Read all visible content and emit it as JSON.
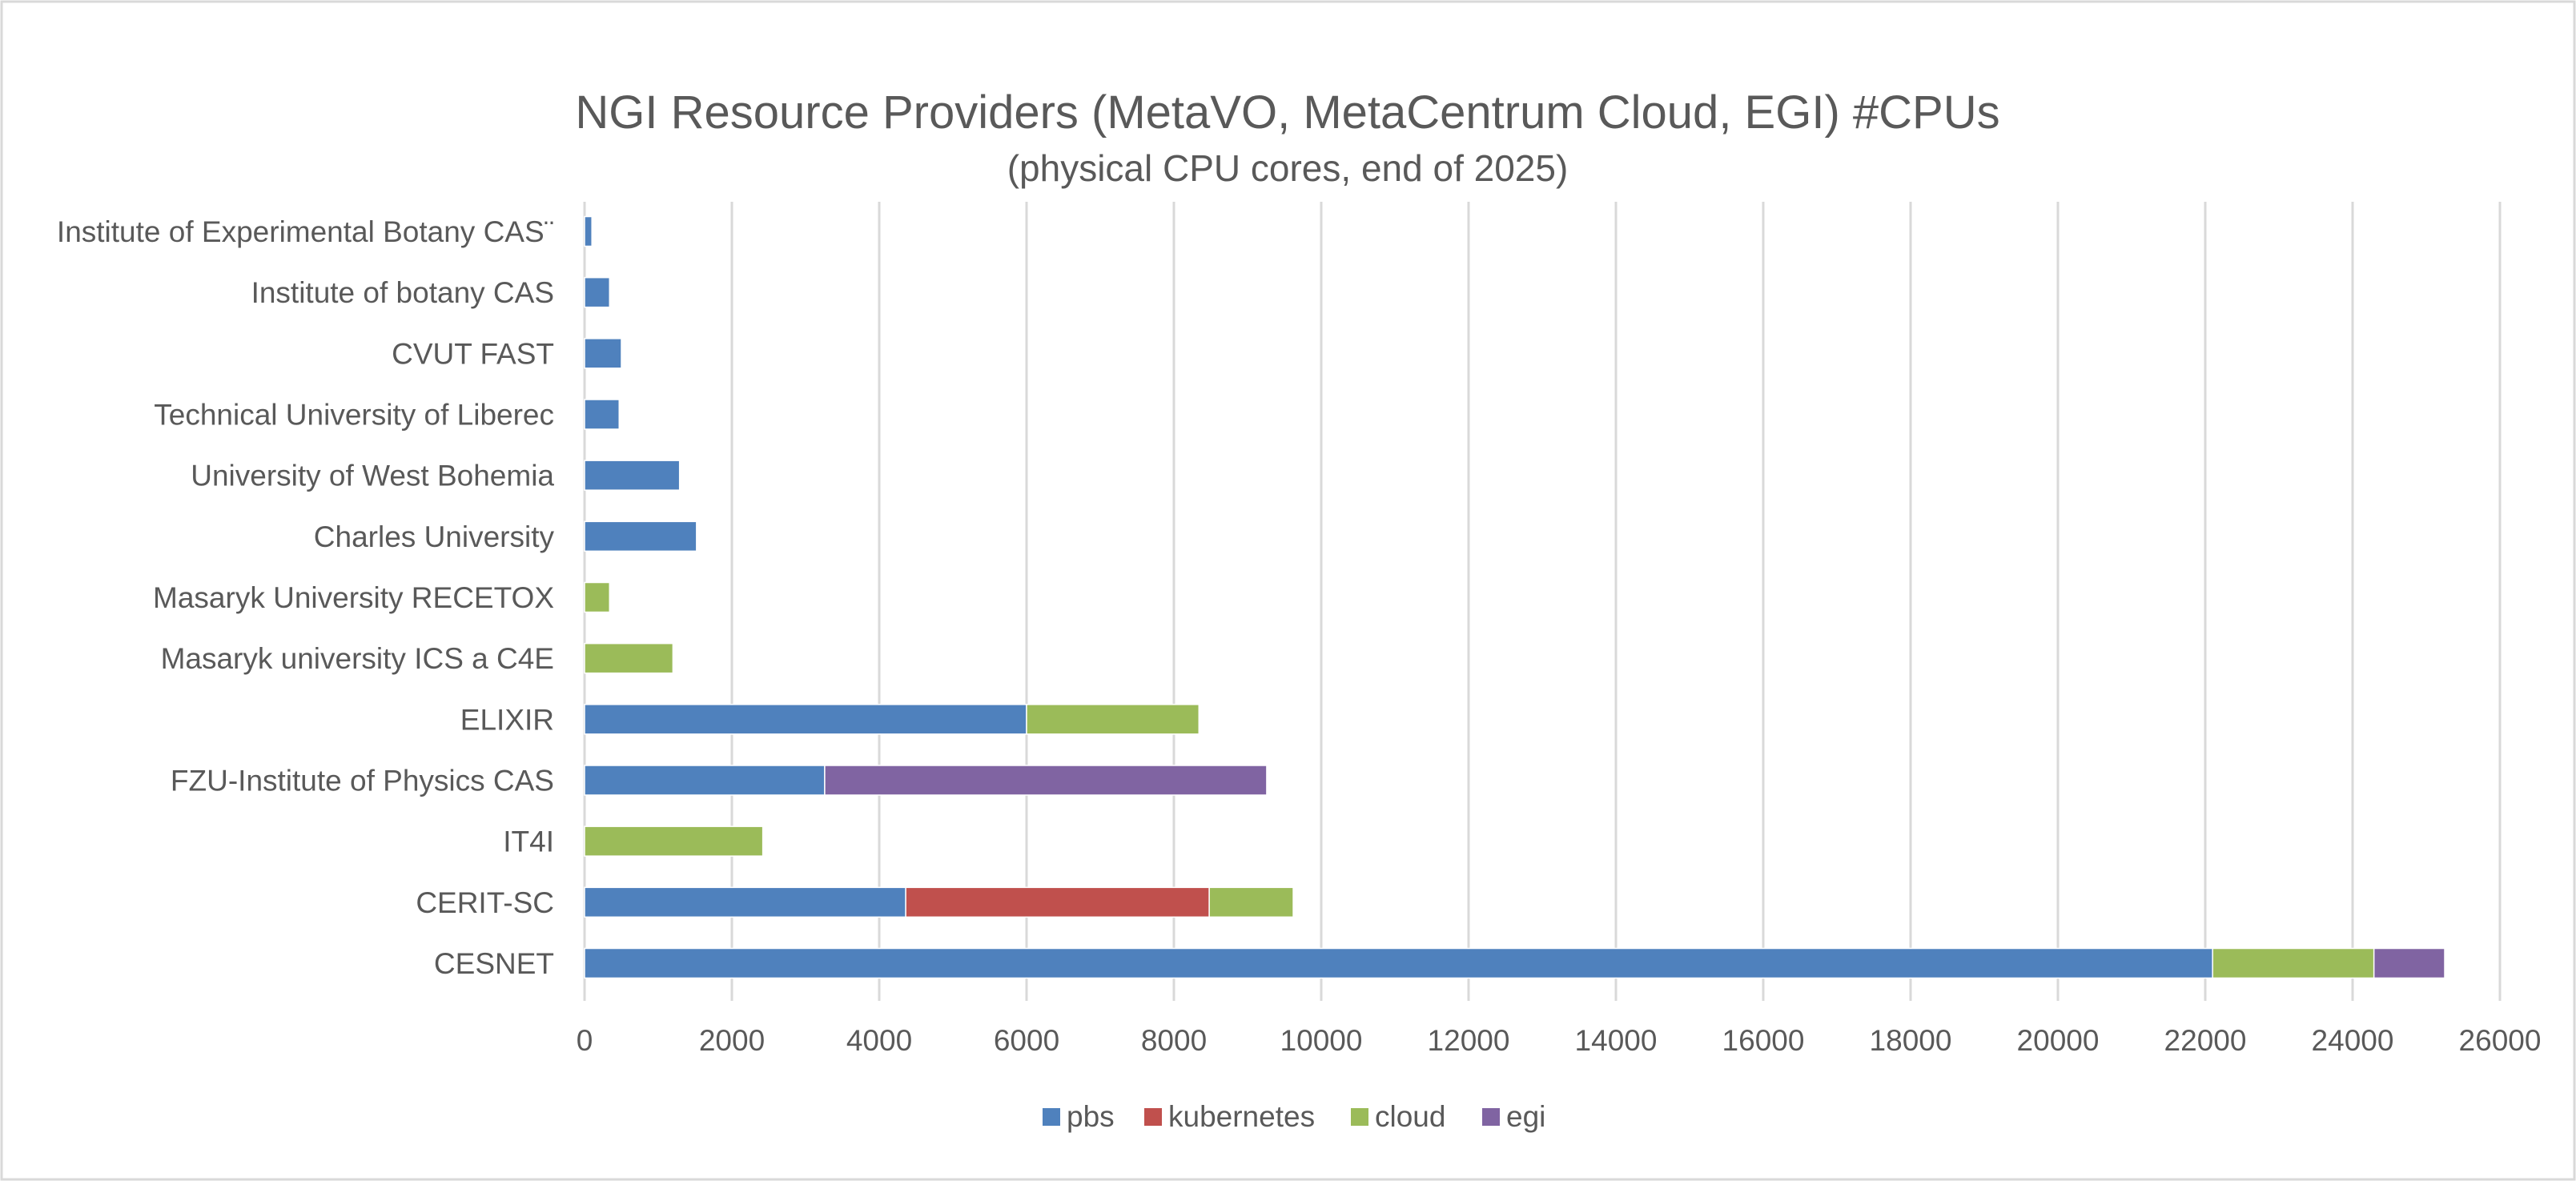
{
  "chart_data": {
    "type": "bar",
    "orientation": "horizontal",
    "stacked": true,
    "title": "NGI Resource Providers (MetaVO, MetaCentrum Cloud, EGI) #CPUs",
    "subtitle": "(physical CPU cores, end of 2025)",
    "xlabel": "",
    "ylabel": "",
    "xlim": [
      0,
      26000
    ],
    "xticks": [
      "0",
      "2000",
      "4000",
      "6000",
      "8000",
      "10000",
      "12000",
      "14000",
      "16000",
      "18000",
      "20000",
      "22000",
      "24000",
      "26000"
    ],
    "grid": true,
    "legend_position": "bottom",
    "categories": [
      "Institute of Experimental Botany CAS¨",
      "Institute of botany CAS",
      "CVUT FAST",
      "Technical University of Liberec",
      "University of West Bohemia ",
      "Charles University",
      "Masaryk University RECETOX",
      "Masaryk university ICS  a C4E",
      "ELIXIR",
      "FZU-Institute of Physics CAS",
      "IT4I",
      "CERIT-SC",
      "CESNET "
    ],
    "series": [
      {
        "name": "pbs",
        "color": "#4F81BD",
        "values": [
          100,
          340,
          500,
          470,
          1290,
          1520,
          0,
          0,
          6000,
          3260,
          0,
          4360,
          22100
        ]
      },
      {
        "name": "kubernetes",
        "color": "#C0504D",
        "values": [
          0,
          0,
          0,
          0,
          0,
          0,
          0,
          0,
          0,
          0,
          0,
          4120,
          0
        ]
      },
      {
        "name": "cloud",
        "color": "#9BBB59",
        "values": [
          0,
          0,
          0,
          0,
          0,
          0,
          340,
          1200,
          2340,
          0,
          2420,
          1140,
          2190
        ]
      },
      {
        "name": "egi",
        "color": "#8064A2",
        "values": [
          0,
          0,
          0,
          0,
          0,
          0,
          0,
          0,
          0,
          6000,
          0,
          0,
          960
        ]
      }
    ]
  }
}
